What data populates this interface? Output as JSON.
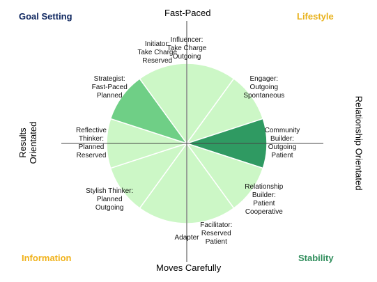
{
  "colors": {
    "segment_light": "#ccf7c6",
    "segment_medium": "#6fcf86",
    "segment_dark": "#2f9a62",
    "segment_stroke": "#ffffff",
    "axis": "#444444",
    "goal_setting": "#0f2760",
    "lifestyle": "#e8b11a",
    "information": "#f0b21b",
    "stability": "#2f8d5b"
  },
  "corners": {
    "goal_setting": "Goal Setting",
    "lifestyle": "Lifestyle",
    "information": "Information",
    "stability": "Stability"
  },
  "axes": {
    "top": "Fast-Paced",
    "bottom": "Moves Carefully",
    "left_line1": "Results",
    "left_line2": "Orientated",
    "right": "Relationship Orientated"
  },
  "segments": [
    {
      "lines": [
        "Influencer:",
        "Take Charge",
        "Outgoing"
      ],
      "shade": "light"
    },
    {
      "lines": [
        "Engager:",
        "Outgoing",
        "Spontaneous"
      ],
      "shade": "light"
    },
    {
      "lines": [
        "Community",
        "Builder:",
        "Outgoing",
        "Patient"
      ],
      "shade": "dark"
    },
    {
      "lines": [
        "Relationship",
        "Builder:",
        "Patient",
        "Cooperative"
      ],
      "shade": "light"
    },
    {
      "lines": [
        "Facilitator:",
        "Reserved",
        "Patient"
      ],
      "shade": "light"
    },
    {
      "lines": [
        "Adapter"
      ],
      "shade": "light"
    },
    {
      "lines": [
        "Stylish Thinker:",
        "Planned",
        "Outgoing"
      ],
      "shade": "light"
    },
    {
      "lines": [
        "Reflective",
        "Thinker:",
        "Planned",
        "Reserved"
      ],
      "shade": "light"
    },
    {
      "lines": [
        "Strategist:",
        "Fast-Paced",
        "Planned"
      ],
      "shade": "medium"
    },
    {
      "lines": [
        "Initiator:",
        "Take Charge",
        "Reserved"
      ],
      "shade": "light"
    }
  ]
}
